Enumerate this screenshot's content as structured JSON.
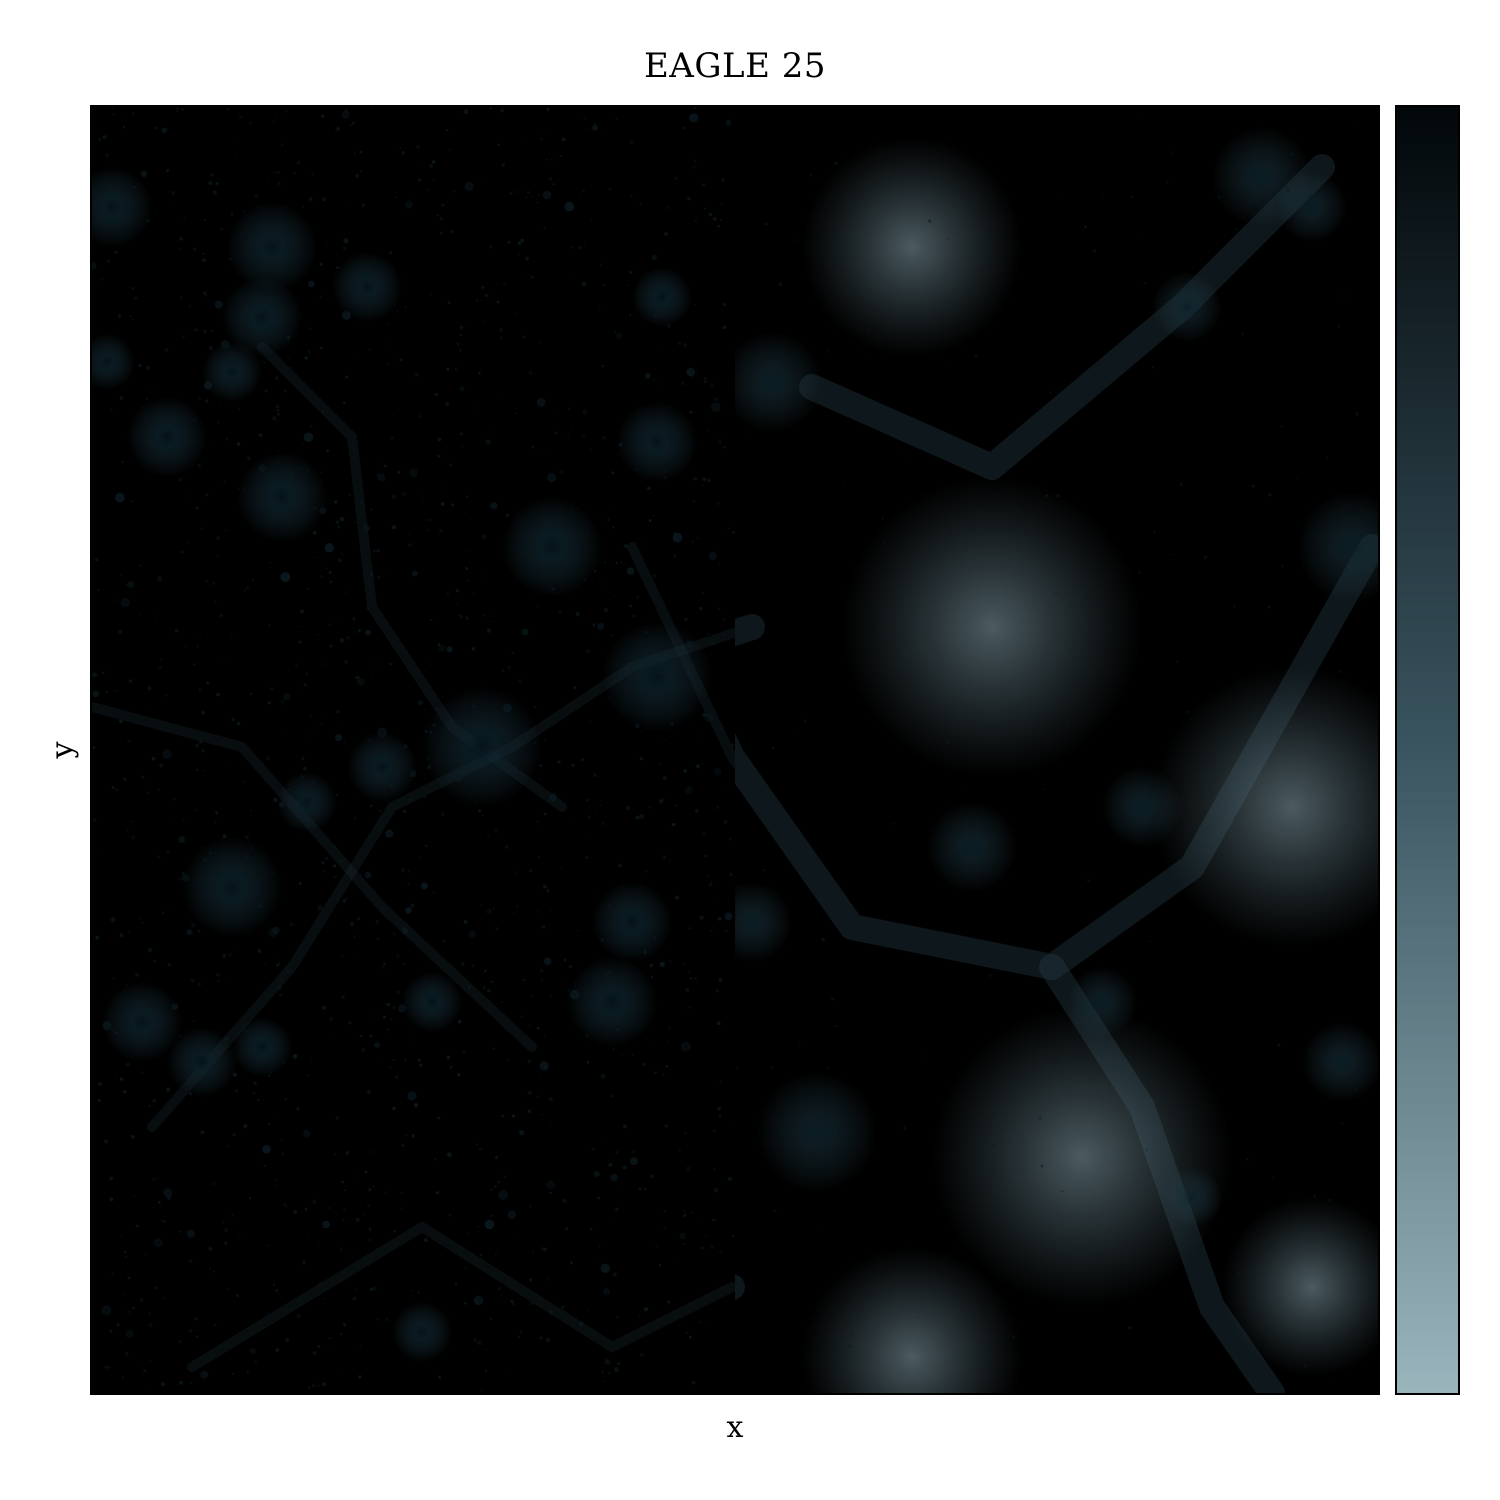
{
  "figure": {
    "title": "EAGLE 25",
    "xlabel": "x",
    "ylabel": "y"
  },
  "image": {
    "description_icon": "cosmic-web-density-map-icon",
    "left_panel_color": "#9cb3ba",
    "right_panel_color": "#5a7883",
    "halo_color": "#0b1a20"
  },
  "colorbar": {
    "color_top": "#02070a",
    "color_mid": "#3a5560",
    "color_bottom": "#9ab4bc"
  }
}
